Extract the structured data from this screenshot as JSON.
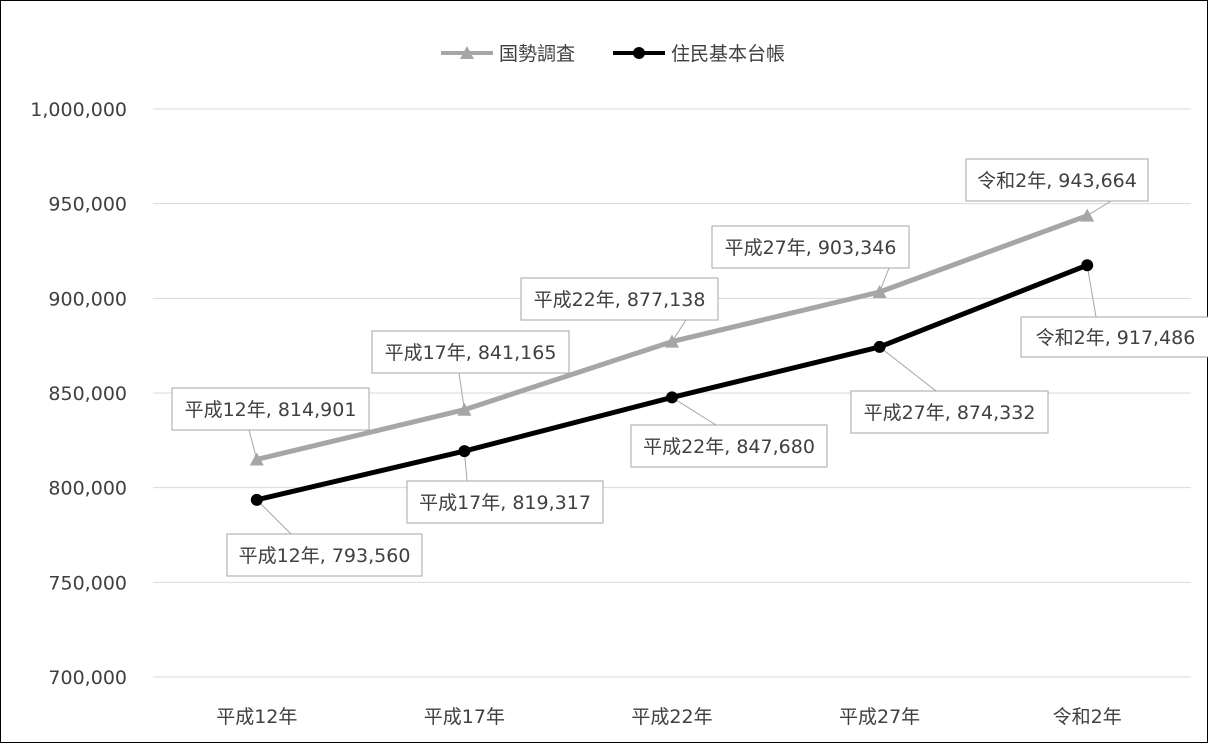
{
  "chart_data": {
    "type": "line",
    "categories": [
      "平成12年",
      "平成17年",
      "平成22年",
      "平成27年",
      "令和2年"
    ],
    "ylim": [
      700000,
      1000000
    ],
    "yticks": [
      700000,
      750000,
      800000,
      850000,
      900000,
      950000,
      1000000
    ],
    "ytick_labels": [
      "700,000",
      "750,000",
      "800,000",
      "850,000",
      "900,000",
      "950,000",
      "1,000,000"
    ],
    "grid": true,
    "legend_position": "top",
    "series": [
      {
        "name": "国勢調査",
        "color": "#a6a6a6",
        "marker": "triangle",
        "values": [
          814901,
          841165,
          877138,
          903346,
          943664
        ],
        "labels": [
          "平成12年, 814,901",
          "平成17年, 841,165",
          "平成22年, 877,138",
          "平成27年, 903,346",
          "令和2年, 943,664"
        ]
      },
      {
        "name": "住民基本台帳",
        "color": "#000000",
        "marker": "circle",
        "values": [
          793560,
          819317,
          847680,
          874332,
          917486
        ],
        "labels": [
          "平成12年, 793,560",
          "平成17年, 819,317",
          "平成22年, 847,680",
          "平成27年, 874,332",
          "令和2年, 917,486"
        ]
      }
    ]
  }
}
